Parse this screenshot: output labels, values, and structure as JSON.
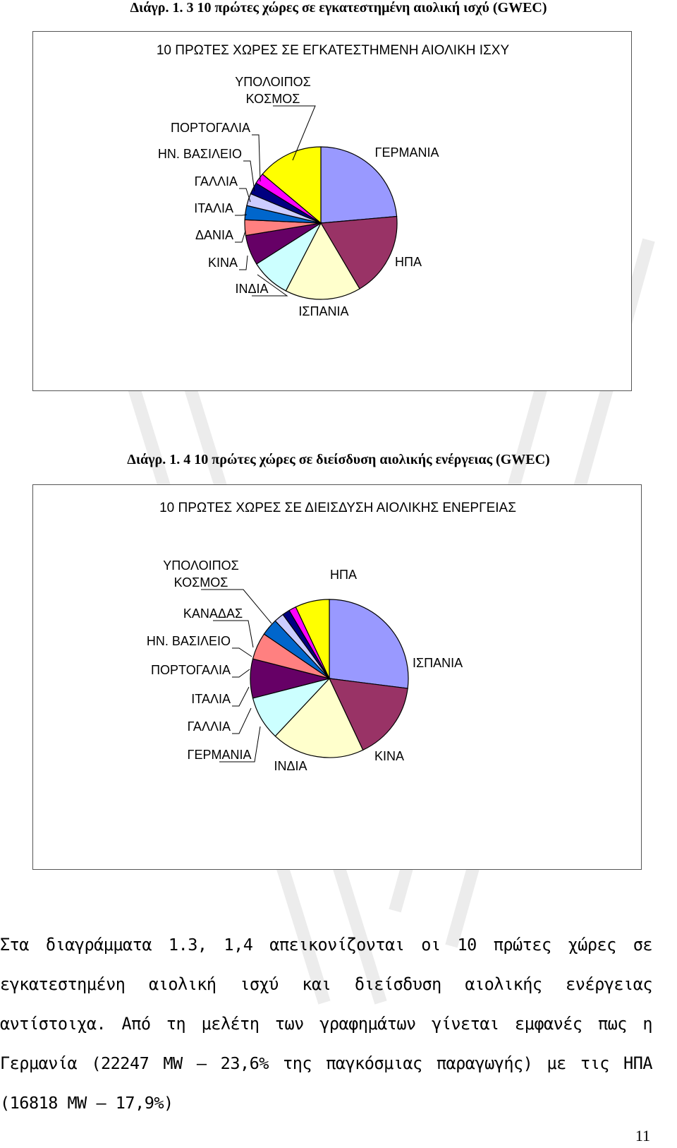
{
  "captions": {
    "fig13": "Διάγρ. 1. 3 10 πρώτες χώρες σε εγκατεστημένη αιολική ισχύ (GWEC)",
    "fig14": "Διάγρ. 1. 4 10 πρώτες χώρες σε διείσδυση αιολικής ενέργειας (GWEC)"
  },
  "chart_data": [
    {
      "type": "pie",
      "title": "10 ΠΡΩΤΕΣ ΧΩΡΕΣ ΣΕ ΕΓΚΑΤΕΣΤΗΜΕΝΗ ΑΙΟΛΙΚΗ ΙΣΧΥ",
      "categories": [
        "ΓΕΡΜΑΝΙΑ",
        "ΗΠΑ",
        "ΙΣΠΑΝΙΑ",
        "ΙΝΔΙΑ",
        "ΚΙΝΑ",
        "ΔΑΝΙΑ",
        "ΙΤΑΛΙΑ",
        "ΓΑΛΛΙΑ",
        "ΗΝ. ΒΑΣΙΛΕΙΟ",
        "ΠΟΡΤΟΓΑΛΙΑ",
        "ΥΠΟΛΟΙΠΟΣ ΚΟΣΜΟΣ"
      ],
      "values": [
        23.6,
        17.9,
        16.1,
        8.4,
        6.4,
        3.3,
        3.0,
        2.6,
        2.5,
        2.3,
        13.9
      ],
      "colors": [
        "#9999ff",
        "#993366",
        "#ffffcc",
        "#ccffff",
        "#660066",
        "#ff8080",
        "#0066cc",
        "#ccccff",
        "#000080",
        "#ff00ff",
        "#ffff00"
      ],
      "legend": "none"
    },
    {
      "type": "pie",
      "title": "10 ΠΡΩΤΕΣ ΧΩΡΕΣ ΣΕ ΔΙΕΙΣΔΥΣΗ ΑΙΟΛΙΚΗΣ ΕΝΕΡΓΕΙΑΣ",
      "categories": [
        "ΗΠΑ",
        "ΙΣΠΑΝΙΑ",
        "ΚΙΝΑ",
        "ΙΝΔΙΑ",
        "ΓΕΡΜΑΝΙΑ",
        "ΓΑΛΛΙΑ",
        "ΙΤΑΛΙΑ",
        "ΠΟΡΤΟΓΑΛΙΑ",
        "ΗΝ. ΒΑΣΙΛΕΙΟ",
        "ΚΑΝΑΔΑΣ",
        "ΥΠΟΛΟΙΠΟΣ ΚΟΣΜΟΣ"
      ],
      "values": [
        27.0,
        16.0,
        19.0,
        9.0,
        8.0,
        5.5,
        3.5,
        2.0,
        1.5,
        1.5,
        7.0
      ],
      "colors": [
        "#9999ff",
        "#993366",
        "#ffffcc",
        "#ccffff",
        "#660066",
        "#ff8080",
        "#0066cc",
        "#ccccff",
        "#000080",
        "#ff00ff",
        "#ffff00"
      ],
      "legend": "none"
    }
  ],
  "body": {
    "paragraph": "Στα διαγράμματα 1.3, 1,4 απεικονίζονται οι 10 πρώτες χώρες σε εγκατεστημένη αιολική ισχύ και διείσδυση αιολικής ενέργειας αντίστοιχα. Από τη μελέτη των γραφημάτων γίνεται εμφανές πως η Γερμανία (22247 MW – 23,6% της παγκόσμιας παραγωγής) με τις ΗΠΑ (16818 MW – 17,9%)"
  },
  "page_number": "11"
}
